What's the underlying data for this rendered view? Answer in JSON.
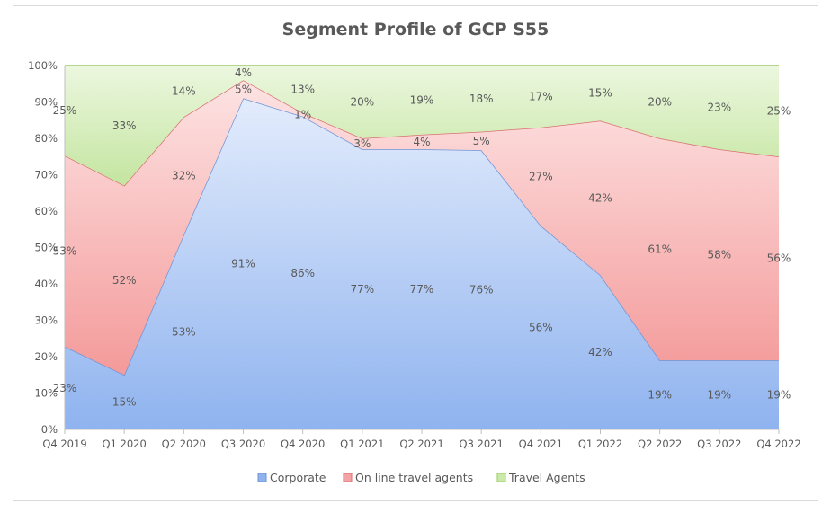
{
  "chart_data": {
    "type": "area",
    "stacked": "percent",
    "title": "Segment Profile of GCP S55",
    "categories": [
      "Q4 2019",
      "Q1 2020",
      "Q2 2020",
      "Q3 2020",
      "Q4 2020",
      "Q1 2021",
      "Q2 2021",
      "Q3 2021",
      "Q4 2021",
      "Q1 2022",
      "Q2 2022",
      "Q3 2022",
      "Q4 2022"
    ],
    "y_ticks": [
      "0%",
      "10%",
      "20%",
      "30%",
      "40%",
      "50%",
      "60%",
      "70%",
      "80%",
      "90%",
      "100%"
    ],
    "ylim": [
      0,
      100
    ],
    "grid": false,
    "legend_position": "bottom",
    "series": [
      {
        "name": "Corporate",
        "values": [
          23,
          15,
          53,
          91,
          86,
          77,
          77,
          76,
          56,
          42,
          19,
          19,
          19
        ],
        "labels": [
          "23%",
          "15%",
          "53%",
          "91%",
          "86%",
          "77%",
          "77%",
          "76%",
          "56%",
          "42%",
          "19%",
          "19%",
          "19%"
        ],
        "color": "#8fb3ef"
      },
      {
        "name": "On line travel agents",
        "values": [
          53,
          52,
          32,
          5,
          1,
          3,
          4,
          5,
          27,
          42,
          61,
          58,
          56
        ],
        "labels": [
          "53%",
          "52%",
          "32%",
          "5%",
          "1%",
          "3%",
          "4%",
          "5%",
          "27%",
          "42%",
          "61%",
          "58%",
          "56%"
        ],
        "color": "#f3a3a3"
      },
      {
        "name": "Travel Agents",
        "values": [
          25,
          33,
          14,
          4,
          13,
          20,
          19,
          18,
          17,
          15,
          20,
          23,
          25
        ],
        "labels": [
          "25%",
          "33%",
          "14%",
          "4%",
          "13%",
          "20%",
          "19%",
          "18%",
          "17%",
          "15%",
          "20%",
          "23%",
          "25%"
        ],
        "color": "#cbe9a8"
      }
    ]
  }
}
